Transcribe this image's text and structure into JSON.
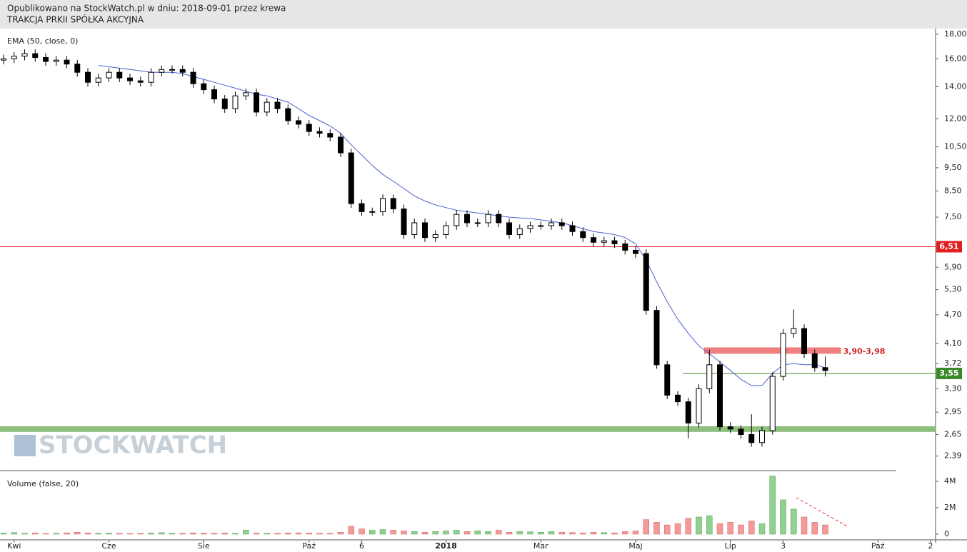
{
  "chart_data": {
    "type": "candlestick",
    "title": "Opublikowano na StockWatch.pl w dniu: 2018-09-01 przez krewa",
    "subtitle": "TRAKCJA PRKII SPÓŁKA AKCYJNA",
    "watermark": "STOCKWATCH",
    "log_scale": true,
    "ylim": [
      2.23,
      18.49
    ],
    "yticks": [
      {
        "value": 18,
        "label": "18,00"
      },
      {
        "value": 16,
        "label": "16,00"
      },
      {
        "value": 14,
        "label": "14,00"
      },
      {
        "value": 12,
        "label": "12,00"
      },
      {
        "value": 10.5,
        "label": "10,50"
      },
      {
        "value": 9.5,
        "label": "9,50"
      },
      {
        "value": 8.5,
        "label": "8,50"
      },
      {
        "value": 7.5,
        "label": "7,50"
      },
      {
        "value": 5.9,
        "label": "5,90"
      },
      {
        "value": 5.3,
        "label": "5,30"
      },
      {
        "value": 4.7,
        "label": "4,70"
      },
      {
        "value": 4.1,
        "label": "4,10"
      },
      {
        "value": 3.72,
        "label": "3,72"
      },
      {
        "value": 3.3,
        "label": "3,30"
      },
      {
        "value": 2.95,
        "label": "2,95"
      },
      {
        "value": 2.65,
        "label": "2,65"
      },
      {
        "value": 2.39,
        "label": "2,39"
      }
    ],
    "categories": [
      null,
      "Kwi",
      null,
      null,
      null,
      null,
      null,
      null,
      null,
      null,
      "Cze",
      null,
      null,
      null,
      null,
      null,
      null,
      null,
      null,
      "Sie",
      null,
      null,
      null,
      null,
      null,
      null,
      null,
      null,
      null,
      "Paź",
      null,
      null,
      null,
      null,
      "6",
      null,
      null,
      null,
      null,
      null,
      null,
      null,
      "2018",
      null,
      null,
      null,
      null,
      null,
      null,
      null,
      null,
      "Mar",
      null,
      null,
      null,
      null,
      null,
      null,
      null,
      null,
      "Maj",
      null,
      null,
      null,
      null,
      null,
      null,
      null,
      null,
      "Lip",
      null,
      null,
      null,
      null,
      "3",
      null,
      null,
      null,
      null,
      null,
      null,
      null,
      null,
      "Paź",
      null,
      null,
      null,
      null,
      "2"
    ],
    "open": [
      15.9,
      16.0,
      16.2,
      16.4,
      16.1,
      15.8,
      15.9,
      15.6,
      15.0,
      14.3,
      14.6,
      15.0,
      14.6,
      14.4,
      14.3,
      15.0,
      15.2,
      15.2,
      15.0,
      14.2,
      13.8,
      13.2,
      12.6,
      13.4,
      13.6,
      12.4,
      13.0,
      12.6,
      11.9,
      11.7,
      11.3,
      11.2,
      11.0,
      10.2,
      8.0,
      7.7,
      7.7,
      8.2,
      7.8,
      6.9,
      7.3,
      6.8,
      6.9,
      7.2,
      7.6,
      7.3,
      7.3,
      7.6,
      7.3,
      6.9,
      7.1,
      7.2,
      7.2,
      7.3,
      7.2,
      7.0,
      6.8,
      6.65,
      6.7,
      6.6,
      6.4,
      6.3,
      4.8,
      3.7,
      3.2,
      3.1,
      2.8,
      3.3,
      3.7,
      2.75,
      2.72,
      2.65,
      2.55,
      2.7,
      3.5,
      4.3,
      4.4,
      3.9,
      3.65,
      null,
      null,
      null,
      null,
      null,
      null,
      null,
      null,
      null,
      null
    ],
    "high": [
      16.32,
      16.52,
      16.73,
      16.73,
      16.42,
      16.22,
      16.22,
      15.91,
      15.3,
      14.89,
      15.3,
      15.3,
      14.89,
      14.69,
      15.3,
      15.5,
      15.5,
      15.5,
      15.3,
      14.48,
      14.08,
      13.46,
      13.67,
      13.87,
      13.87,
      13.26,
      13.26,
      12.85,
      12.14,
      11.93,
      11.53,
      11.42,
      11.22,
      10.4,
      8.16,
      7.85,
      8.36,
      8.36,
      7.96,
      7.45,
      7.45,
      7.04,
      7.34,
      7.75,
      7.75,
      7.45,
      7.75,
      7.75,
      7.45,
      7.24,
      7.34,
      7.34,
      7.45,
      7.45,
      7.34,
      7.14,
      6.94,
      6.83,
      6.83,
      6.73,
      6.53,
      6.43,
      4.9,
      3.77,
      3.26,
      3.16,
      3.37,
      3.98,
      3.77,
      2.81,
      2.77,
      2.92,
      2.75,
      3.57,
      4.39,
      4.82,
      4.49,
      3.98,
      3.85,
      null,
      null,
      null,
      null,
      null,
      null,
      null,
      null,
      null,
      null
    ],
    "low": [
      15.58,
      15.68,
      15.88,
      15.78,
      15.48,
      15.48,
      15.29,
      14.7,
      14.01,
      14.01,
      14.31,
      14.31,
      14.11,
      14.01,
      14.01,
      14.7,
      14.9,
      14.7,
      13.92,
      13.52,
      12.94,
      12.35,
      12.35,
      13.13,
      12.15,
      12.15,
      12.35,
      11.66,
      11.47,
      11.07,
      10.98,
      10.78,
      10.0,
      7.84,
      7.55,
      7.55,
      7.55,
      7.64,
      6.76,
      6.76,
      6.66,
      6.66,
      6.76,
      7.06,
      7.15,
      7.15,
      7.15,
      7.15,
      6.76,
      6.76,
      6.96,
      7.06,
      7.06,
      7.06,
      6.86,
      6.66,
      6.52,
      6.52,
      6.47,
      6.27,
      6.17,
      4.7,
      3.63,
      3.14,
      3.04,
      2.6,
      2.74,
      3.23,
      2.7,
      2.67,
      2.6,
      2.5,
      2.5,
      2.65,
      3.43,
      4.21,
      3.82,
      3.58,
      3.5,
      null,
      null,
      null,
      null,
      null,
      null,
      null,
      null,
      null,
      null
    ],
    "close": [
      16.0,
      16.2,
      16.4,
      16.1,
      15.8,
      15.9,
      15.6,
      15.0,
      14.3,
      14.6,
      15.0,
      14.6,
      14.4,
      14.3,
      15.0,
      15.2,
      15.2,
      15.0,
      14.2,
      13.8,
      13.2,
      12.6,
      13.4,
      13.6,
      12.4,
      13.0,
      12.6,
      11.9,
      11.7,
      11.3,
      11.2,
      11.0,
      10.2,
      8.0,
      7.7,
      7.7,
      8.2,
      7.8,
      6.9,
      7.3,
      6.8,
      6.9,
      7.2,
      7.6,
      7.3,
      7.3,
      7.6,
      7.3,
      6.9,
      7.1,
      7.2,
      7.2,
      7.3,
      7.2,
      7.0,
      6.8,
      6.65,
      6.7,
      6.6,
      6.4,
      6.3,
      4.8,
      3.7,
      3.2,
      3.1,
      2.8,
      3.3,
      3.7,
      2.75,
      2.72,
      2.65,
      2.55,
      2.7,
      3.5,
      4.3,
      4.4,
      3.9,
      3.65,
      3.6,
      null,
      null,
      null,
      null,
      null,
      null,
      null,
      null,
      null,
      null
    ],
    "candle_color": "#000000",
    "ema": {
      "label": "EMA (50, close, 0)",
      "color": "#4a5fd0",
      "values": [
        null,
        null,
        null,
        null,
        null,
        null,
        null,
        null,
        null,
        15.5,
        15.4,
        15.3,
        15.2,
        15.1,
        15.0,
        15.0,
        15.0,
        14.9,
        14.7,
        14.5,
        14.3,
        14.1,
        13.9,
        13.7,
        13.5,
        13.4,
        13.2,
        13.0,
        12.6,
        12.2,
        11.9,
        11.6,
        11.2,
        10.6,
        10.1,
        9.6,
        9.2,
        8.9,
        8.6,
        8.3,
        8.1,
        7.95,
        7.85,
        7.75,
        7.7,
        7.65,
        7.6,
        7.55,
        7.5,
        7.47,
        7.45,
        7.4,
        7.35,
        7.3,
        7.2,
        7.1,
        7.0,
        6.95,
        6.9,
        6.8,
        6.6,
        6.1,
        5.5,
        5.0,
        4.6,
        4.3,
        4.05,
        3.9,
        3.75,
        3.6,
        3.45,
        3.35,
        3.35,
        3.55,
        3.7,
        3.72,
        3.7,
        3.7,
        3.65,
        null,
        null,
        null,
        null,
        null,
        null,
        null,
        null,
        null,
        null
      ]
    },
    "volume": {
      "label": "Volume (false, 20)",
      "up_color": "#8fd18f",
      "down_color": "#f39a9a",
      "ylim": [
        0,
        4650000
      ],
      "yticks": [
        {
          "value": 4000000,
          "label": "4M"
        },
        {
          "value": 2000000,
          "label": "2M"
        },
        0
      ],
      "values": [
        80000,
        120000,
        60000,
        90000,
        50000,
        70000,
        100000,
        150000,
        90000,
        60000,
        80000,
        70000,
        50000,
        60000,
        90000,
        120000,
        70000,
        60000,
        100000,
        80000,
        70000,
        90000,
        60000,
        300000,
        80000,
        70000,
        60000,
        90000,
        100000,
        80000,
        70000,
        60000,
        150000,
        600000,
        400000,
        300000,
        350000,
        300000,
        250000,
        200000,
        150000,
        200000,
        250000,
        300000,
        200000,
        250000,
        200000,
        300000,
        150000,
        200000,
        180000,
        150000,
        200000,
        150000,
        120000,
        100000,
        150000,
        120000,
        100000,
        200000,
        250000,
        1100000,
        900000,
        700000,
        800000,
        1200000,
        1300000,
        1400000,
        800000,
        900000,
        700000,
        1000000,
        800000,
        4400000,
        2600000,
        1900000,
        1300000,
        900000,
        700000,
        null,
        null,
        null,
        null,
        null,
        null,
        null,
        null,
        null,
        null
      ]
    },
    "levels": [
      {
        "value": 6.51,
        "label": "6,51",
        "color": "#e02020"
      },
      {
        "value": 3.55,
        "label": "3,55",
        "color": "#3a8a2a"
      }
    ],
    "zone": {
      "low": 3.9,
      "high": 3.98,
      "label": "3,90-3,98",
      "color": "#f08080"
    },
    "support_band": {
      "value": 2.72,
      "color": "#8fbf7f"
    }
  }
}
